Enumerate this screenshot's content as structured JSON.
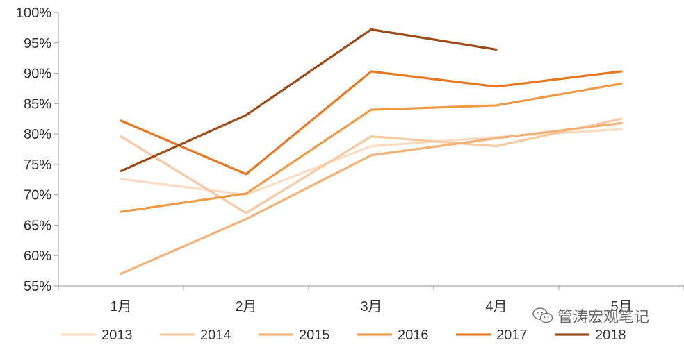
{
  "chart_data": {
    "type": "line",
    "title": "",
    "xlabel": "",
    "ylabel": "",
    "categories": [
      "1月",
      "2月",
      "3月",
      "4月",
      "5月"
    ],
    "ylim": [
      55,
      100
    ],
    "yticks": [
      55,
      60,
      65,
      70,
      75,
      80,
      85,
      90,
      95,
      100
    ],
    "ytick_suffix": "%",
    "grid": false,
    "legend_position": "bottom",
    "series": [
      {
        "name": "2013",
        "color": "#f9dcc2",
        "values": [
          72.6,
          70.0,
          78.0,
          79.5,
          80.8
        ]
      },
      {
        "name": "2014",
        "color": "#f6c9a0",
        "values": [
          79.6,
          67.0,
          79.6,
          78.0,
          82.5
        ]
      },
      {
        "name": "2015",
        "color": "#f2b27a",
        "values": [
          57.0,
          66.0,
          76.5,
          79.3,
          81.8
        ]
      },
      {
        "name": "2016",
        "color": "#ee9b48",
        "values": [
          67.2,
          70.2,
          84.0,
          84.7,
          88.3
        ]
      },
      {
        "name": "2017",
        "color": "#e87722",
        "values": [
          82.2,
          73.4,
          90.3,
          87.8,
          90.3
        ]
      },
      {
        "name": "2018",
        "color": "#9c4a17",
        "values": [
          73.9,
          83.1,
          97.2,
          93.9,
          null
        ]
      }
    ]
  },
  "watermark": {
    "icon": "wechat-icon",
    "text": "管涛宏观笔记"
  }
}
